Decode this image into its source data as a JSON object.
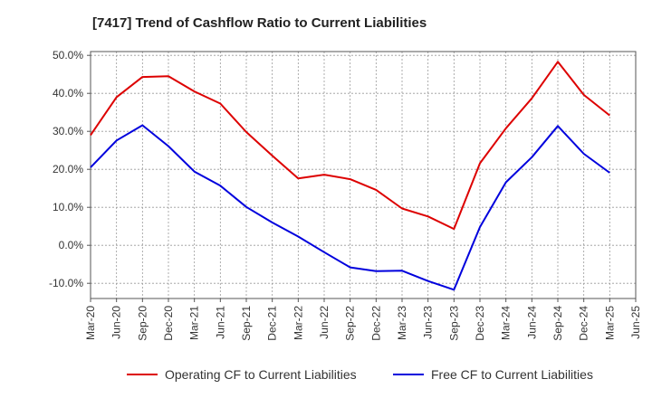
{
  "chart_data": {
    "type": "line",
    "title": "[7417]  Trend of Cashflow Ratio to Current Liabilities",
    "xlabel": "",
    "ylabel": "",
    "x": [
      "Mar-20",
      "Jun-20",
      "Sep-20",
      "Dec-20",
      "Mar-21",
      "Jun-21",
      "Sep-21",
      "Dec-21",
      "Mar-22",
      "Jun-22",
      "Sep-22",
      "Dec-22",
      "Mar-23",
      "Jun-23",
      "Sep-23",
      "Dec-23",
      "Mar-24",
      "Jun-24",
      "Sep-24",
      "Dec-24",
      "Mar-25",
      "Jun-25"
    ],
    "ylim": [
      -14,
      51
    ],
    "yticks": [
      -10,
      0,
      10,
      20,
      30,
      40,
      50
    ],
    "ytick_labels": [
      "-10.0%",
      "0.0%",
      "10.0%",
      "20.0%",
      "30.0%",
      "40.0%",
      "50.0%"
    ],
    "grid": true,
    "legend_position": "bottom",
    "series": [
      {
        "name": "Operating CF to Current Liabilities",
        "color": "#dd0000",
        "values": [
          29.0,
          39.0,
          44.3,
          44.5,
          40.5,
          37.3,
          29.8,
          23.6,
          17.6,
          18.6,
          17.4,
          14.6,
          9.7,
          7.6,
          4.3,
          21.6,
          30.8,
          38.7,
          48.3,
          39.6,
          34.2,
          null
        ]
      },
      {
        "name": "Free CF to Current Liabilities",
        "color": "#0000dd",
        "values": [
          20.5,
          27.6,
          31.6,
          26.1,
          19.4,
          15.7,
          10.1,
          6.0,
          2.3,
          -1.8,
          -5.8,
          -6.8,
          -6.7,
          -9.4,
          -11.7,
          4.8,
          16.6,
          23.2,
          31.4,
          24.1,
          19.1,
          null
        ]
      }
    ]
  }
}
